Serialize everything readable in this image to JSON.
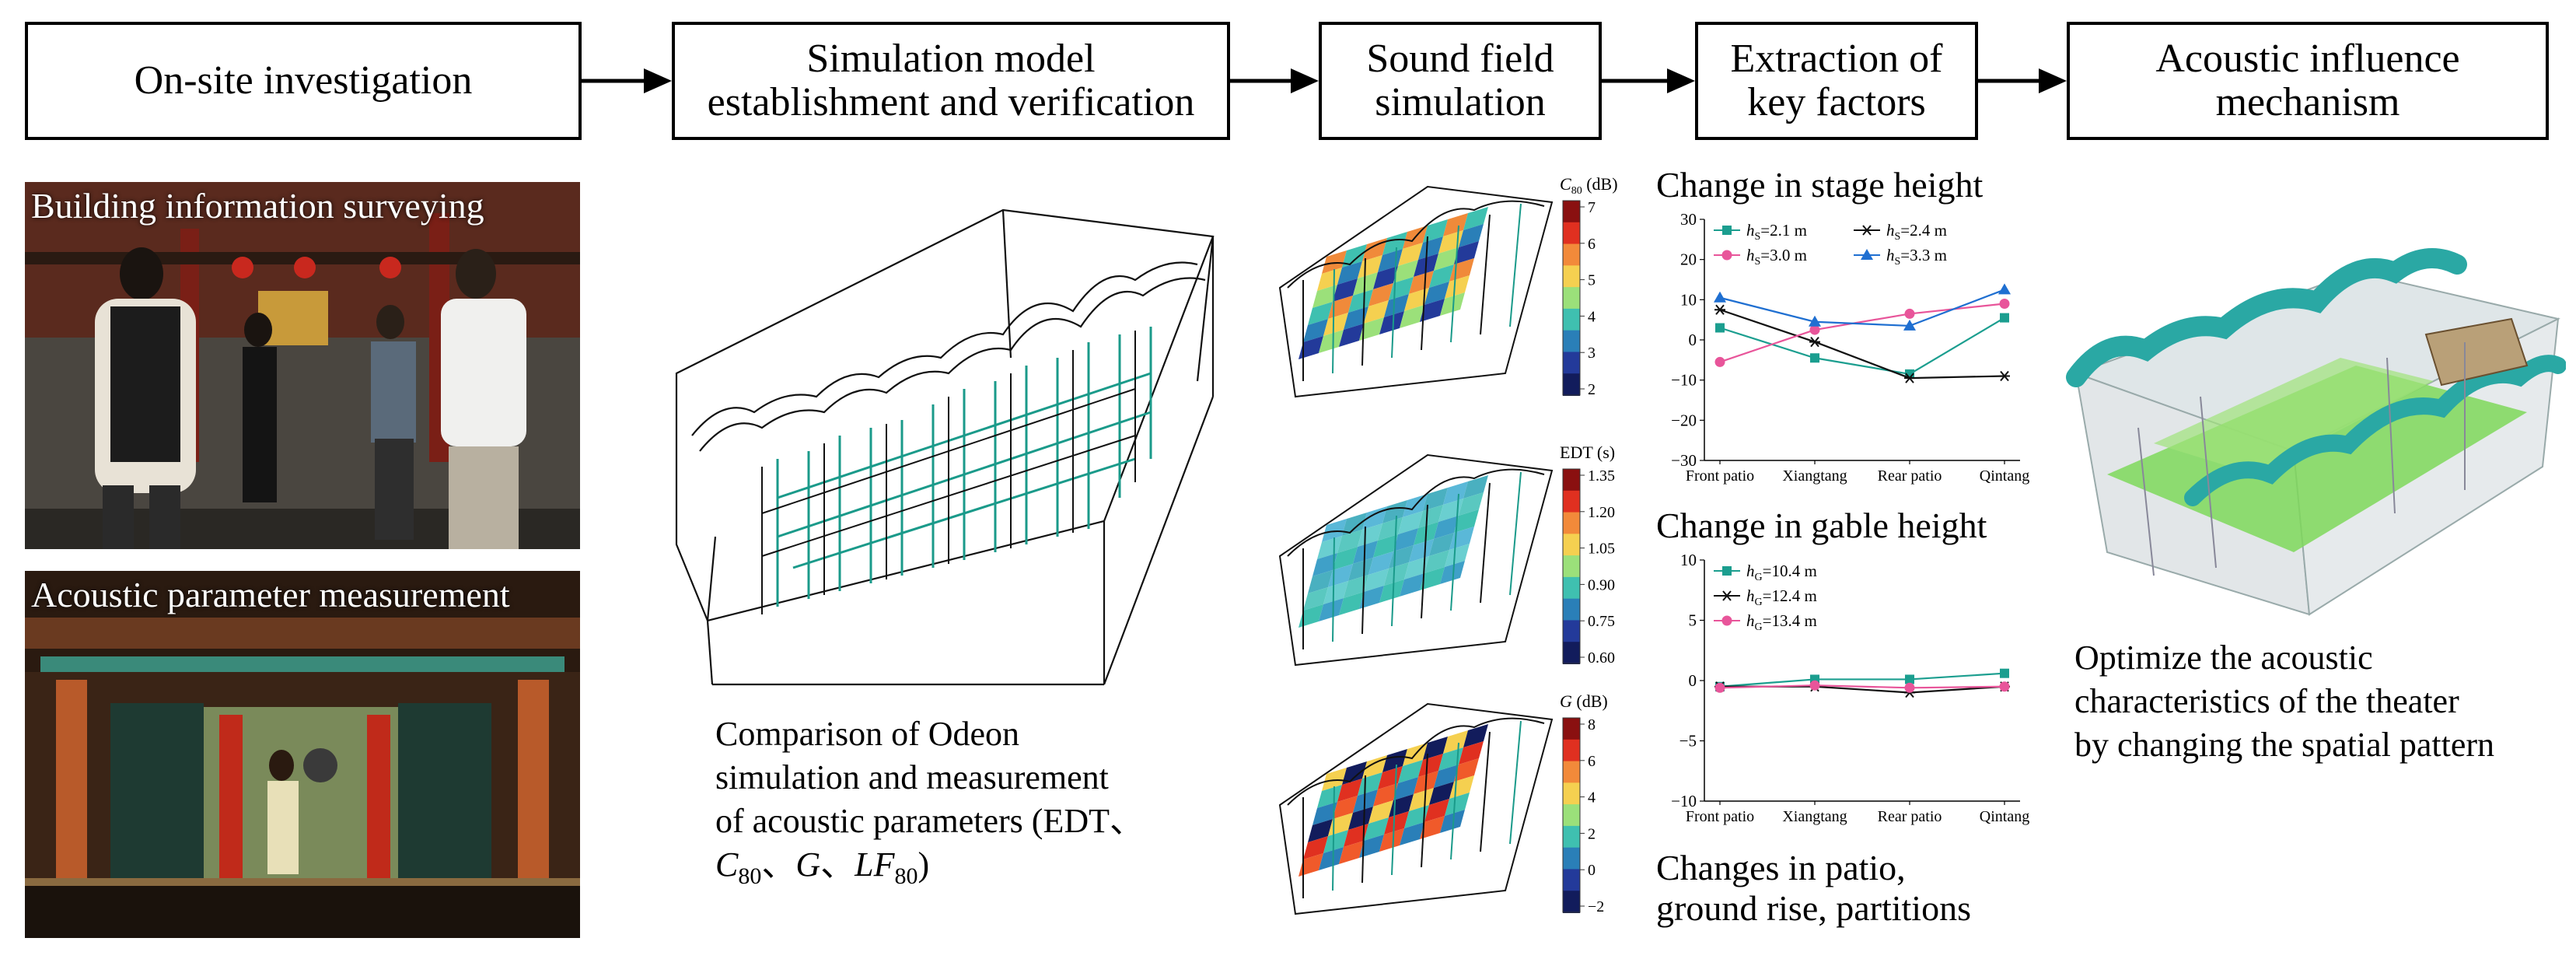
{
  "stages": [
    {
      "lines": [
        "On-site investigation"
      ]
    },
    {
      "lines": [
        "Simulation model",
        "establishment and verification"
      ]
    },
    {
      "lines": [
        "Sound field",
        "simulation"
      ]
    },
    {
      "lines": [
        "Extraction of",
        "key factors"
      ]
    },
    {
      "lines": [
        "Acoustic influence",
        "mechanism"
      ]
    }
  ],
  "photos": {
    "survey_label": "Building information surveying",
    "measure_label": "Acoustic parameter measurement"
  },
  "simulation_caption": {
    "line1": "Comparison of Odeon",
    "line2": "simulation and measurement",
    "line3": "of acoustic parameters (EDT、",
    "line4_c": "C",
    "line4_c_sub": "80",
    "line4_sep1": "、",
    "line4_g": "G",
    "line4_sep2": "、",
    "line4_lf": "LF",
    "line4_lf_sub": "80",
    "line4_end": ")"
  },
  "sound_maps": [
    {
      "label_main": "C",
      "label_sub": "80",
      "label_unit": " (dB)",
      "ticks": [
        "7",
        "6",
        "5",
        "4",
        "3",
        "2"
      ]
    },
    {
      "label_main": "EDT",
      "label_sub": "",
      "label_unit": " (s)",
      "ticks": [
        "1.35",
        "1.20",
        "1.05",
        "0.90",
        "0.75",
        "0.60"
      ]
    },
    {
      "label_main": "G",
      "label_sub": "",
      "label_unit": " (dB)",
      "ticks": [
        "8",
        "6",
        "4",
        "2",
        "0",
        "−2"
      ]
    }
  ],
  "factors": {
    "stage_heading": "Change in stage height",
    "gable_heading": "Change in gable height",
    "other_heading_line1": "Changes in patio,",
    "other_heading_line2": "ground rise, partitions"
  },
  "chart_data": [
    {
      "type": "line",
      "title": "Change in stage height",
      "categories": [
        "Front patio",
        "Xiangtang",
        "Rear patio",
        "Qintang"
      ],
      "ylim": [
        -30,
        30
      ],
      "yticks": [
        "30",
        "20",
        "10",
        "0",
        "−10",
        "−20",
        "−30"
      ],
      "series": [
        {
          "name": "hS=2.1 m",
          "sym": "h",
          "sub": "S",
          "eq": "=2.1 m",
          "color": "#1b9e8f",
          "marker": "square",
          "values": [
            3,
            -4.5,
            -8.5,
            5.5
          ]
        },
        {
          "name": "hS=2.4 m",
          "sym": "h",
          "sub": "S",
          "eq": "=2.4 m",
          "color": "#111111",
          "marker": "star",
          "values": [
            7.5,
            -0.5,
            -9.5,
            -9
          ]
        },
        {
          "name": "hS=3.0 m",
          "sym": "h",
          "sub": "S",
          "eq": "=3.0 m",
          "color": "#e8559a",
          "marker": "circle",
          "values": [
            -5.5,
            2.5,
            6.5,
            9
          ]
        },
        {
          "name": "hS=3.3 m",
          "sym": "h",
          "sub": "S",
          "eq": "=3.3 m",
          "color": "#1f6fd1",
          "marker": "triangle",
          "values": [
            10.5,
            4.5,
            3.5,
            12.5
          ]
        }
      ]
    },
    {
      "type": "line",
      "title": "Change in gable height",
      "categories": [
        "Front patio",
        "Xiangtang",
        "Rear patio",
        "Qintang"
      ],
      "ylim": [
        -10,
        10
      ],
      "yticks": [
        "10",
        "5",
        "0",
        "−5",
        "−10"
      ],
      "series": [
        {
          "name": "hG=10.4 m",
          "sym": "h",
          "sub": "G",
          "eq": "=10.4 m",
          "color": "#1b9e8f",
          "marker": "square",
          "values": [
            -0.5,
            0.1,
            0.1,
            0.6
          ]
        },
        {
          "name": "hG=12.4 m",
          "sym": "h",
          "sub": "G",
          "eq": "=12.4 m",
          "color": "#111111",
          "marker": "star",
          "values": [
            -0.5,
            -0.5,
            -1.0,
            -0.5
          ]
        },
        {
          "name": "hG=13.4 m",
          "sym": "h",
          "sub": "G",
          "eq": "=13.4 m",
          "color": "#e8559a",
          "marker": "circle",
          "values": [
            -0.6,
            -0.4,
            -0.6,
            -0.5
          ]
        }
      ]
    }
  ],
  "mechanism_caption": {
    "line1": "Optimize the acoustic",
    "line2": "characteristics of the theater",
    "line3": "by changing the spatial pattern"
  }
}
